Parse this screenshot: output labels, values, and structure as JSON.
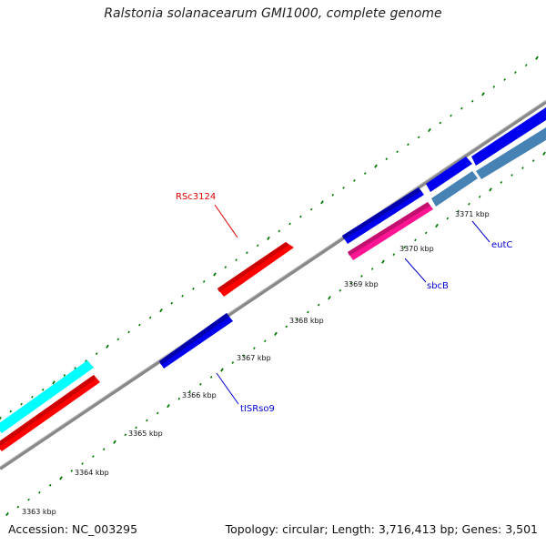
{
  "title": "Ralstonia solanacearum GMI1000, complete genome",
  "footer": {
    "accession": "Accession: NC_003295",
    "summary": "Topology: circular; Length: 3,716,413 bp; Genes: 3,501"
  },
  "ticks": [
    "3363 kbp",
    "3364 kbp",
    "3365 kbp",
    "3366 kbp",
    "3367 kbp",
    "3368 kbp",
    "3369 kbp",
    "3370 kbp",
    "3371 kbp"
  ],
  "gene_labels": [
    {
      "text": "RSc3124",
      "color": "#dd0000"
    },
    {
      "text": "tISRso9",
      "color": "#0000cc"
    },
    {
      "text": "sbcB",
      "color": "#0000cc"
    },
    {
      "text": "eutC",
      "color": "#0000cc"
    }
  ],
  "colors": {
    "red": "#ff0000",
    "blue": "#0000ee",
    "cyan": "#00ffff",
    "pink": "#ff1493",
    "steelblue": "#4682b4",
    "tick_green": "#007700",
    "backbone": "#888888"
  }
}
